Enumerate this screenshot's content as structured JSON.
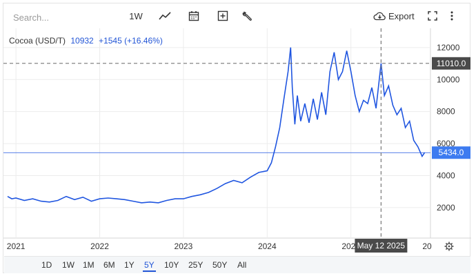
{
  "toolbar": {
    "search_placeholder": "Search...",
    "interval_label": "1W",
    "export_label": "Export"
  },
  "legend": {
    "name": "Cocoa (USD/T)",
    "price": "10932",
    "change": "+1545 (+16.46%)"
  },
  "crosshair": {
    "date_label": "May 12 2025",
    "price_label": "11010.0"
  },
  "last_price_label": "5434.0",
  "ranges": [
    {
      "label": "1D",
      "active": false
    },
    {
      "label": "1W",
      "active": false
    },
    {
      "label": "1M",
      "active": false
    },
    {
      "label": "6M",
      "active": false
    },
    {
      "label": "1Y",
      "active": false
    },
    {
      "label": "5Y",
      "active": true
    },
    {
      "label": "10Y",
      "active": false
    },
    {
      "label": "25Y",
      "active": false
    },
    {
      "label": "50Y",
      "active": false
    },
    {
      "label": "All",
      "active": false
    }
  ],
  "colors": {
    "line": "#1f55e0",
    "crosshair_bg": "#4a4a4a",
    "price_tag_bg": "#3d7bf0"
  },
  "chart_data": {
    "type": "line",
    "series": [
      {
        "name": "Cocoa (USD/T)",
        "x": [
          2020.9,
          2020.95,
          2021.0,
          2021.1,
          2021.2,
          2021.3,
          2021.4,
          2021.5,
          2021.6,
          2021.7,
          2021.8,
          2021.9,
          2022.0,
          2022.1,
          2022.2,
          2022.3,
          2022.4,
          2022.5,
          2022.6,
          2022.7,
          2022.8,
          2022.9,
          2023.0,
          2023.1,
          2023.2,
          2023.3,
          2023.4,
          2023.5,
          2023.6,
          2023.7,
          2023.8,
          2023.9,
          2024.0,
          2024.05,
          2024.1,
          2024.15,
          2024.2,
          2024.25,
          2024.28,
          2024.3,
          2024.33,
          2024.36,
          2024.4,
          2024.45,
          2024.5,
          2024.55,
          2024.6,
          2024.65,
          2024.7,
          2024.75,
          2024.8,
          2024.85,
          2024.9,
          2024.95,
          2025.0,
          2025.05,
          2025.1,
          2025.15,
          2025.2,
          2025.25,
          2025.3,
          2025.36,
          2025.4,
          2025.45,
          2025.5,
          2025.55,
          2025.6,
          2025.65,
          2025.7,
          2025.75,
          2025.8,
          2025.85,
          2025.88
        ],
        "y": [
          2700,
          2550,
          2600,
          2450,
          2550,
          2400,
          2350,
          2450,
          2700,
          2500,
          2650,
          2400,
          2550,
          2600,
          2550,
          2500,
          2400,
          2300,
          2350,
          2300,
          2450,
          2550,
          2550,
          2700,
          2800,
          2950,
          3200,
          3500,
          3700,
          3550,
          3900,
          4200,
          4300,
          4800,
          5800,
          7000,
          8800,
          10500,
          12000,
          9500,
          7200,
          9000,
          7400,
          8500,
          7300,
          8800,
          7500,
          9200,
          7800,
          10500,
          11700,
          10000,
          10500,
          11800,
          10500,
          9000,
          8000,
          8700,
          8500,
          9500,
          8200,
          11010,
          9000,
          9600,
          8400,
          7800,
          8200,
          7000,
          7400,
          6200,
          5800,
          5200,
          5434
        ]
      }
    ],
    "x_ticks": [
      "2021",
      "2022",
      "2023",
      "2024",
      "2025"
    ],
    "x_ticks_partial": "20",
    "y_ticks": [
      "2000",
      "4000",
      "6000",
      "8000",
      "10000",
      "12000"
    ],
    "xlim": [
      2020.9,
      2025.95
    ],
    "ylim": [
      100,
      13200
    ],
    "grid": true
  }
}
